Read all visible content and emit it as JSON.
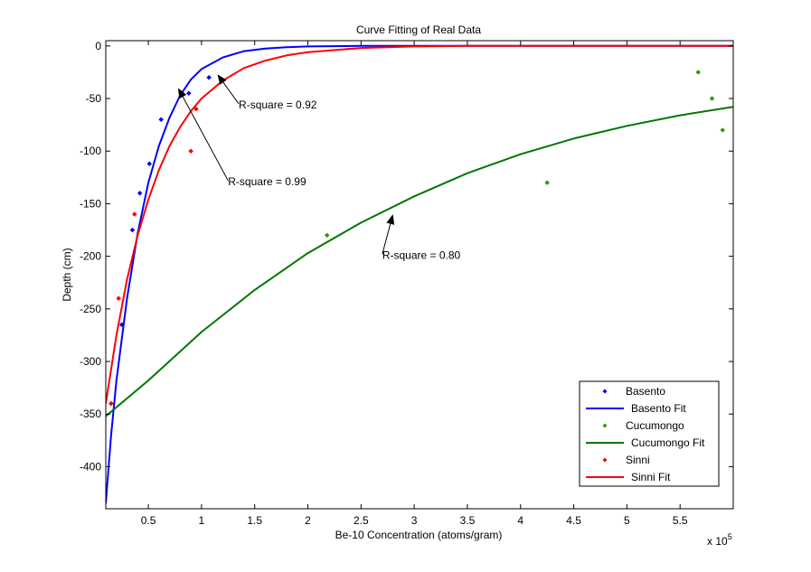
{
  "chart_data": {
    "type": "scatter",
    "title": "Curve Fitting of Real Data",
    "xlabel": "Be-10 Concentration (atoms/gram)",
    "ylabel": "Depth (cm)",
    "x_multiplier_label": "x 10",
    "x_multiplier_exponent": "5",
    "xlim": [
      0.1,
      6.0
    ],
    "ylim": [
      -440,
      5
    ],
    "xticks": [
      0.5,
      1,
      1.5,
      2,
      2.5,
      3,
      3.5,
      4,
      4.5,
      5,
      5.5
    ],
    "xtick_labels": [
      "0.5",
      "1",
      "1.5",
      "2",
      "2.5",
      "3",
      "3.5",
      "4",
      "4.5",
      "5",
      "5.5"
    ],
    "yticks": [
      0,
      -50,
      -100,
      -150,
      -200,
      -250,
      -300,
      -350,
      -400
    ],
    "ytick_labels": [
      "0",
      "-50",
      "-100",
      "-150",
      "-200",
      "-250",
      "-300",
      "-350",
      "-400"
    ],
    "grid": false,
    "legend_position": "bottom-right",
    "series": [
      {
        "name": "Basento",
        "kind": "points",
        "color": "#0000ff",
        "points": [
          [
            0.15,
            -340
          ],
          [
            0.25,
            -265
          ],
          [
            0.35,
            -175
          ],
          [
            0.42,
            -140
          ],
          [
            0.51,
            -112
          ],
          [
            0.62,
            -70
          ],
          [
            0.88,
            -45
          ],
          [
            1.07,
            -30
          ]
        ]
      },
      {
        "name": "Basento Fit",
        "kind": "fit",
        "color": "#0000ff",
        "points": [
          [
            0.1,
            -435
          ],
          [
            0.15,
            -370
          ],
          [
            0.2,
            -318
          ],
          [
            0.3,
            -240
          ],
          [
            0.4,
            -178
          ],
          [
            0.5,
            -130
          ],
          [
            0.6,
            -95
          ],
          [
            0.7,
            -68
          ],
          [
            0.8,
            -47
          ],
          [
            0.9,
            -32
          ],
          [
            1.0,
            -22
          ],
          [
            1.2,
            -11
          ],
          [
            1.4,
            -5
          ],
          [
            1.6,
            -2.5
          ],
          [
            1.8,
            -1.2
          ],
          [
            2.0,
            -0.5
          ],
          [
            2.5,
            0
          ],
          [
            3.0,
            0
          ],
          [
            6.0,
            0
          ]
        ]
      },
      {
        "name": "Cucumongo",
        "kind": "points",
        "color": "#339900",
        "points": [
          [
            2.18,
            -180
          ],
          [
            4.25,
            -130
          ],
          [
            5.67,
            -25
          ],
          [
            5.8,
            -50
          ],
          [
            5.9,
            -80
          ]
        ]
      },
      {
        "name": "Cucumongo Fit",
        "kind": "fit",
        "color": "#007700",
        "points": [
          [
            0.1,
            -352
          ],
          [
            0.5,
            -318
          ],
          [
            1.0,
            -272
          ],
          [
            1.5,
            -232
          ],
          [
            2.0,
            -197
          ],
          [
            2.5,
            -168
          ],
          [
            3.0,
            -143
          ],
          [
            3.5,
            -121
          ],
          [
            4.0,
            -103
          ],
          [
            4.5,
            -88
          ],
          [
            5.0,
            -76
          ],
          [
            5.5,
            -66
          ],
          [
            6.0,
            -58
          ]
        ]
      },
      {
        "name": "Sinni",
        "kind": "points",
        "color": "#ff0000",
        "points": [
          [
            0.15,
            -340
          ],
          [
            0.22,
            -240
          ],
          [
            0.37,
            -160
          ],
          [
            0.9,
            -100
          ],
          [
            0.95,
            -60
          ]
        ]
      },
      {
        "name": "Sinni Fit",
        "kind": "fit",
        "color": "#ff0000",
        "points": [
          [
            0.1,
            -340
          ],
          [
            0.2,
            -275
          ],
          [
            0.3,
            -222
          ],
          [
            0.4,
            -180
          ],
          [
            0.5,
            -146
          ],
          [
            0.6,
            -118
          ],
          [
            0.7,
            -95
          ],
          [
            0.8,
            -77
          ],
          [
            0.9,
            -62
          ],
          [
            1.0,
            -50
          ],
          [
            1.2,
            -33
          ],
          [
            1.4,
            -21
          ],
          [
            1.6,
            -14
          ],
          [
            1.8,
            -9
          ],
          [
            2.0,
            -6
          ],
          [
            2.5,
            -2
          ],
          [
            3.0,
            -0.5
          ],
          [
            3.5,
            0
          ],
          [
            6.0,
            0
          ]
        ]
      }
    ],
    "annotations": [
      {
        "text": "R-square = 0.92",
        "text_at": [
          1.35,
          -55
        ],
        "arrow_to": [
          1.15,
          -27
        ]
      },
      {
        "text": "R-square = 0.99",
        "text_at": [
          1.25,
          -128
        ],
        "arrow_to": [
          0.78,
          -40
        ]
      },
      {
        "text": "R-square = 0.80",
        "text_at": [
          2.7,
          -198
        ],
        "arrow_to": [
          2.8,
          -160
        ]
      }
    ]
  }
}
